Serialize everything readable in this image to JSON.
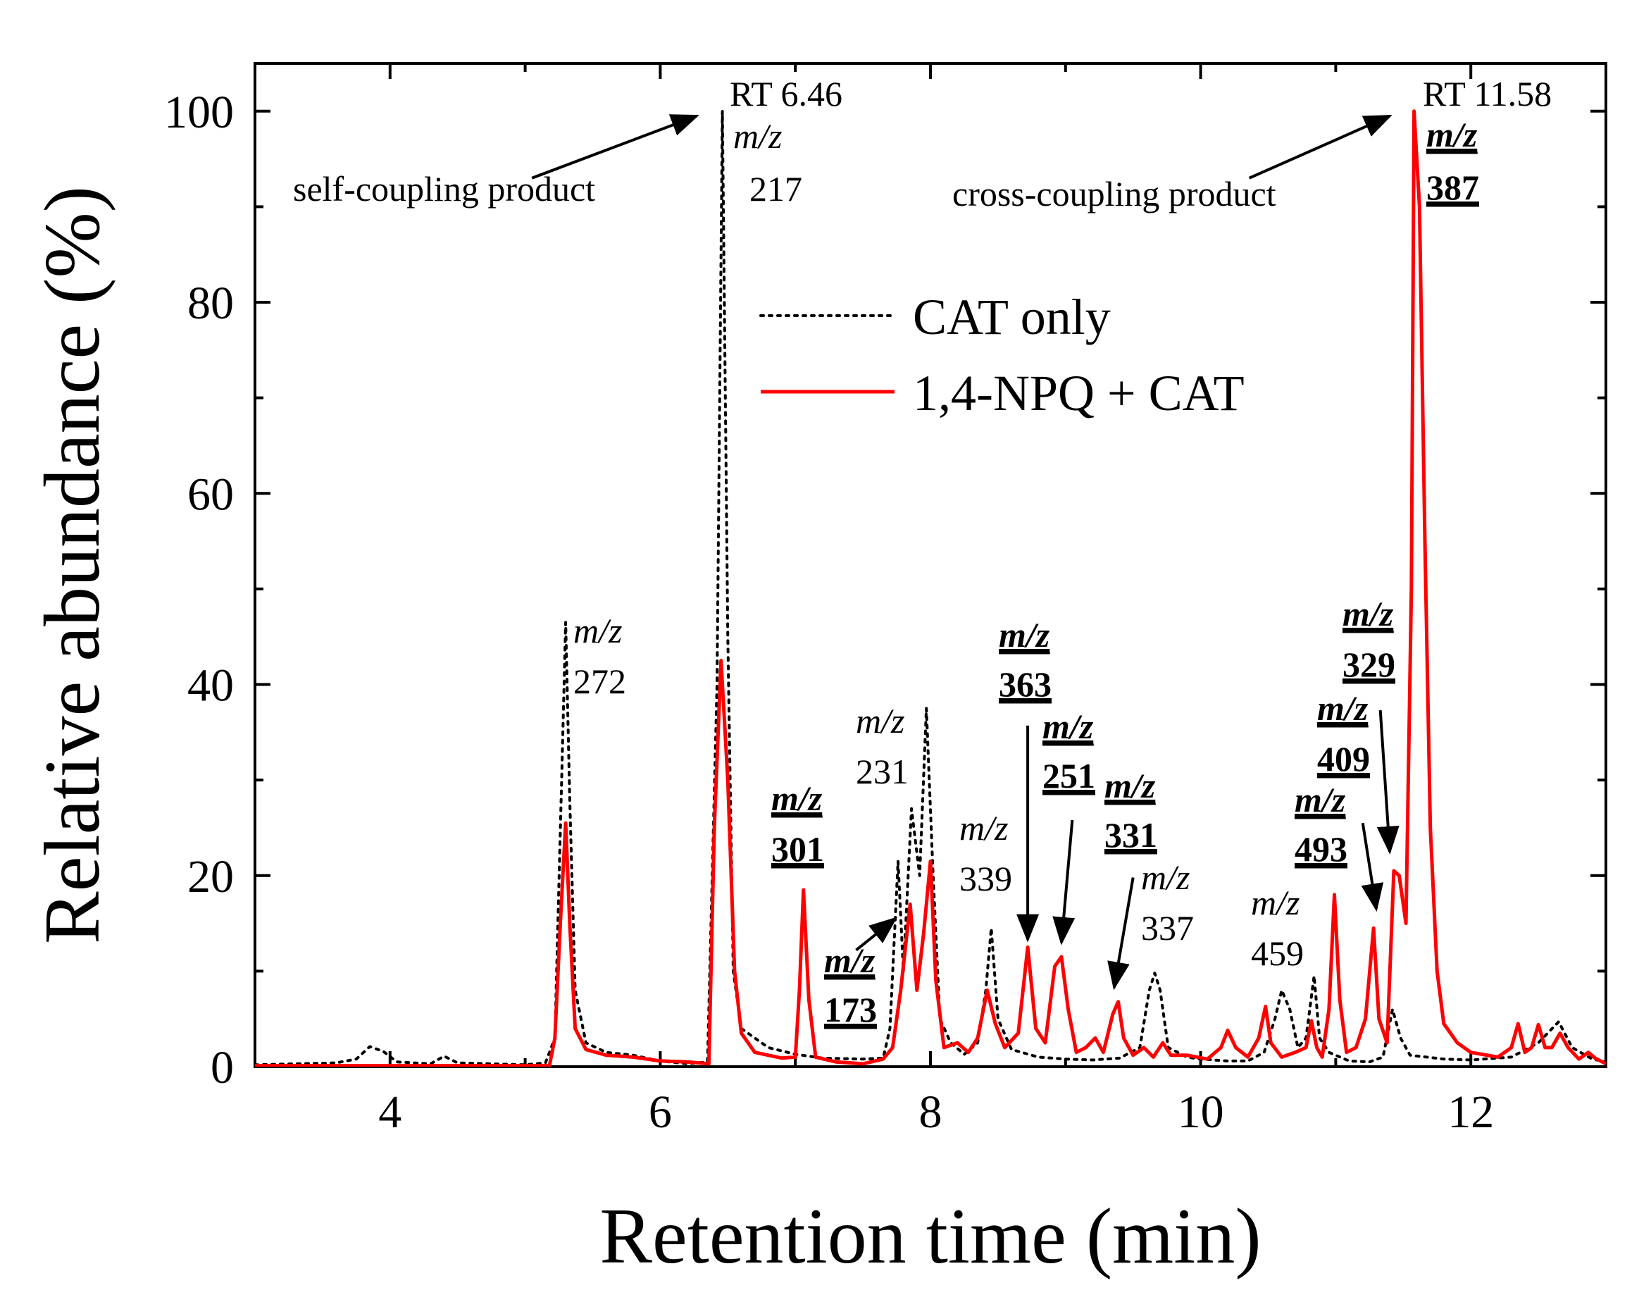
{
  "chart_data": {
    "type": "line",
    "xlabel": "Retention time (min)",
    "ylabel": "Relative abundance (%)",
    "xlim": [
      3,
      13
    ],
    "ylim": [
      0,
      105
    ],
    "x_ticks": [
      4,
      6,
      8,
      10,
      12
    ],
    "x_tick_labels": [
      "4",
      "6",
      "8",
      "10",
      "12"
    ],
    "y_ticks": [
      0,
      20,
      40,
      60,
      80,
      100
    ],
    "y_tick_labels": [
      "0",
      "20",
      "40",
      "60",
      "80",
      "100"
    ],
    "legend_position": "upper-center",
    "series": [
      {
        "name": "CAT only",
        "style": "dotted",
        "color": "#000000",
        "points": [
          [
            3.0,
            0.2
          ],
          [
            3.3,
            0.3
          ],
          [
            3.6,
            0.4
          ],
          [
            3.75,
            0.8
          ],
          [
            3.85,
            2.1
          ],
          [
            3.95,
            1.6
          ],
          [
            4.05,
            0.5
          ],
          [
            4.3,
            0.3
          ],
          [
            4.4,
            1.1
          ],
          [
            4.5,
            0.4
          ],
          [
            5.0,
            0.2
          ],
          [
            5.15,
            0.4
          ],
          [
            5.22,
            3.0
          ],
          [
            5.27,
            30.0
          ],
          [
            5.3,
            46.5
          ],
          [
            5.33,
            28.0
          ],
          [
            5.37,
            8.0
          ],
          [
            5.45,
            2.5
          ],
          [
            5.6,
            1.5
          ],
          [
            5.8,
            1.2
          ],
          [
            6.0,
            0.6
          ],
          [
            6.2,
            0.3
          ],
          [
            6.35,
            0.5
          ],
          [
            6.42,
            40.0
          ],
          [
            6.46,
            100.0
          ],
          [
            6.5,
            45.0
          ],
          [
            6.54,
            10.0
          ],
          [
            6.6,
            4.0
          ],
          [
            6.8,
            2.0
          ],
          [
            7.0,
            1.3
          ],
          [
            7.2,
            0.9
          ],
          [
            7.5,
            0.8
          ],
          [
            7.65,
            0.9
          ],
          [
            7.7,
            4.0
          ],
          [
            7.76,
            21.5
          ],
          [
            7.8,
            10.0
          ],
          [
            7.86,
            27.0
          ],
          [
            7.92,
            20.0
          ],
          [
            7.97,
            37.5
          ],
          [
            8.02,
            20.0
          ],
          [
            8.07,
            5.0
          ],
          [
            8.15,
            2.5
          ],
          [
            8.25,
            1.3
          ],
          [
            8.35,
            2.5
          ],
          [
            8.41,
            8.0
          ],
          [
            8.45,
            14.5
          ],
          [
            8.5,
            5.0
          ],
          [
            8.6,
            1.8
          ],
          [
            8.8,
            1.0
          ],
          [
            9.0,
            0.8
          ],
          [
            9.2,
            0.7
          ],
          [
            9.4,
            0.9
          ],
          [
            9.55,
            2.0
          ],
          [
            9.62,
            8.0
          ],
          [
            9.66,
            9.8
          ],
          [
            9.7,
            8.0
          ],
          [
            9.76,
            2.0
          ],
          [
            9.9,
            1.0
          ],
          [
            10.0,
            0.8
          ],
          [
            10.2,
            0.6
          ],
          [
            10.35,
            0.6
          ],
          [
            10.47,
            1.5
          ],
          [
            10.55,
            5.0
          ],
          [
            10.6,
            8.0
          ],
          [
            10.66,
            6.0
          ],
          [
            10.72,
            2.0
          ],
          [
            10.78,
            3.0
          ],
          [
            10.84,
            9.5
          ],
          [
            10.88,
            3.0
          ],
          [
            10.95,
            1.5
          ],
          [
            11.1,
            0.6
          ],
          [
            11.25,
            0.5
          ],
          [
            11.35,
            1.0
          ],
          [
            11.42,
            6.0
          ],
          [
            11.48,
            3.0
          ],
          [
            11.55,
            1.2
          ],
          [
            11.8,
            0.8
          ],
          [
            12.0,
            0.7
          ],
          [
            12.3,
            1.0
          ],
          [
            12.5,
            2.5
          ],
          [
            12.65,
            4.7
          ],
          [
            12.75,
            2.0
          ],
          [
            12.9,
            0.8
          ],
          [
            13.0,
            0.5
          ]
        ]
      },
      {
        "name": "1,4-NPQ + CAT",
        "style": "solid",
        "color": "#ff0000",
        "points": [
          [
            3.0,
            0.1
          ],
          [
            4.0,
            0.1
          ],
          [
            5.0,
            0.1
          ],
          [
            5.18,
            0.1
          ],
          [
            5.22,
            3.0
          ],
          [
            5.26,
            15.0
          ],
          [
            5.3,
            25.5
          ],
          [
            5.33,
            15.0
          ],
          [
            5.37,
            4.0
          ],
          [
            5.45,
            1.8
          ],
          [
            5.6,
            1.2
          ],
          [
            5.8,
            1.0
          ],
          [
            6.0,
            0.6
          ],
          [
            6.2,
            0.5
          ],
          [
            6.36,
            0.3
          ],
          [
            6.4,
            25.0
          ],
          [
            6.45,
            42.5
          ],
          [
            6.5,
            30.0
          ],
          [
            6.55,
            10.0
          ],
          [
            6.6,
            3.5
          ],
          [
            6.7,
            1.5
          ],
          [
            6.9,
            0.9
          ],
          [
            7.0,
            1.0
          ],
          [
            7.03,
            8.0
          ],
          [
            7.06,
            18.5
          ],
          [
            7.1,
            7.0
          ],
          [
            7.15,
            1.0
          ],
          [
            7.3,
            0.5
          ],
          [
            7.5,
            0.3
          ],
          [
            7.65,
            0.8
          ],
          [
            7.72,
            2.0
          ],
          [
            7.78,
            8.0
          ],
          [
            7.85,
            17.0
          ],
          [
            7.9,
            8.0
          ],
          [
            7.95,
            14.0
          ],
          [
            8.0,
            21.5
          ],
          [
            8.04,
            9.0
          ],
          [
            8.1,
            2.0
          ],
          [
            8.2,
            2.5
          ],
          [
            8.28,
            1.5
          ],
          [
            8.35,
            3.0
          ],
          [
            8.42,
            8.0
          ],
          [
            8.48,
            4.5
          ],
          [
            8.55,
            2.0
          ],
          [
            8.65,
            3.5
          ],
          [
            8.72,
            12.5
          ],
          [
            8.78,
            4.0
          ],
          [
            8.85,
            2.5
          ],
          [
            8.92,
            10.5
          ],
          [
            8.97,
            11.5
          ],
          [
            9.02,
            6.0
          ],
          [
            9.08,
            1.5
          ],
          [
            9.15,
            2.0
          ],
          [
            9.22,
            3.0
          ],
          [
            9.28,
            1.5
          ],
          [
            9.35,
            5.5
          ],
          [
            9.39,
            6.8
          ],
          [
            9.43,
            3.0
          ],
          [
            9.5,
            1.2
          ],
          [
            9.58,
            2.0
          ],
          [
            9.65,
            1.0
          ],
          [
            9.72,
            2.5
          ],
          [
            9.78,
            1.2
          ],
          [
            9.9,
            1.2
          ],
          [
            10.05,
            0.8
          ],
          [
            10.15,
            2.0
          ],
          [
            10.2,
            3.8
          ],
          [
            10.26,
            2.0
          ],
          [
            10.35,
            1.0
          ],
          [
            10.43,
            3.0
          ],
          [
            10.48,
            6.3
          ],
          [
            10.52,
            2.5
          ],
          [
            10.6,
            1.0
          ],
          [
            10.7,
            1.5
          ],
          [
            10.78,
            2.0
          ],
          [
            10.82,
            4.8
          ],
          [
            10.86,
            2.0
          ],
          [
            10.9,
            1.0
          ],
          [
            10.95,
            6.0
          ],
          [
            10.99,
            18.0
          ],
          [
            11.03,
            7.0
          ],
          [
            11.08,
            1.5
          ],
          [
            11.15,
            2.0
          ],
          [
            11.22,
            5.0
          ],
          [
            11.28,
            14.5
          ],
          [
            11.32,
            5.0
          ],
          [
            11.38,
            2.5
          ],
          [
            11.43,
            20.5
          ],
          [
            11.47,
            20.0
          ],
          [
            11.52,
            15.0
          ],
          [
            11.56,
            50.0
          ],
          [
            11.58,
            100.0
          ],
          [
            11.62,
            90.0
          ],
          [
            11.66,
            55.0
          ],
          [
            11.7,
            25.0
          ],
          [
            11.75,
            10.0
          ],
          [
            11.8,
            4.5
          ],
          [
            11.9,
            2.5
          ],
          [
            12.0,
            1.5
          ],
          [
            12.2,
            1.0
          ],
          [
            12.3,
            2.0
          ],
          [
            12.35,
            4.5
          ],
          [
            12.4,
            1.5
          ],
          [
            12.45,
            2.0
          ],
          [
            12.5,
            4.4
          ],
          [
            12.55,
            2.0
          ],
          [
            12.6,
            2.0
          ],
          [
            12.66,
            3.5
          ],
          [
            12.72,
            2.0
          ],
          [
            12.8,
            0.8
          ],
          [
            12.87,
            1.5
          ],
          [
            12.92,
            0.9
          ],
          [
            13.0,
            0.3
          ]
        ]
      }
    ],
    "annotations": {
      "rt_646": {
        "label": "RT 6.46",
        "mz": "m/z",
        "value": "217",
        "x": 6.46,
        "y": 100
      },
      "self_coupling": {
        "label": "self-coupling product",
        "arrow_to": [
          6.27,
          99.5
        ],
        "arrow_from": [
          5.05,
          93.0
        ]
      },
      "rt_1158": {
        "label": "RT 11.58",
        "mz": "m/z",
        "value": "387",
        "x": 11.58,
        "y": 100
      },
      "cross_coupling": {
        "label": "cross-coupling product",
        "arrow_to": [
          11.4,
          99.5
        ],
        "arrow_from": [
          10.36,
          93.0
        ]
      },
      "peak_272": {
        "mz": "m/z",
        "value": "272",
        "x": 5.3,
        "y": 46.5
      },
      "peak_301": {
        "mz": "m/z",
        "value": "301",
        "x": 7.06,
        "y": 18.5
      },
      "peak_173": {
        "mz": "m/z",
        "value": "173",
        "arrow_to": [
          7.74,
          15.5
        ],
        "arrow_from": [
          7.45,
          12.2
        ]
      },
      "peak_231": {
        "mz": "m/z",
        "value": "231",
        "x": 7.97,
        "y": 37.5
      },
      "peak_339": {
        "mz": "m/z",
        "value": "339",
        "x": 8.45,
        "y": 14.5
      },
      "peak_363": {
        "mz": "m/z",
        "value": "363",
        "arrow_to": [
          8.72,
          13.3
        ],
        "arrow_from": [
          8.72,
          35.7
        ]
      },
      "peak_251": {
        "mz": "m/z",
        "value": "251",
        "arrow_to": [
          8.97,
          13.0
        ],
        "arrow_from": [
          9.05,
          25.8
        ]
      },
      "peak_331": {
        "mz": "m/z",
        "value": "331",
        "arrow_to": [
          9.36,
          8.3
        ],
        "arrow_from": [
          9.5,
          19.8
        ]
      },
      "peak_337": {
        "mz": "m/z",
        "value": "337",
        "x": 9.66,
        "y": 9.8
      },
      "peak_459": {
        "mz": "m/z",
        "value": "459",
        "x": 10.6,
        "y": 8.0
      },
      "peak_493": {
        "mz": "m/z",
        "value": "493",
        "arrow_to": [
          11.3,
          16.5
        ],
        "arrow_from": [
          11.2,
          25.5
        ]
      },
      "peak_409": {
        "mz": "m/z",
        "value": "409",
        "arrow_to": [
          11.4,
          22.5
        ],
        "arrow_from": [
          11.33,
          37.3
        ]
      },
      "peak_329": {
        "mz": "m/z",
        "value": "329",
        "x": 11.43,
        "y": 20.5
      }
    }
  }
}
